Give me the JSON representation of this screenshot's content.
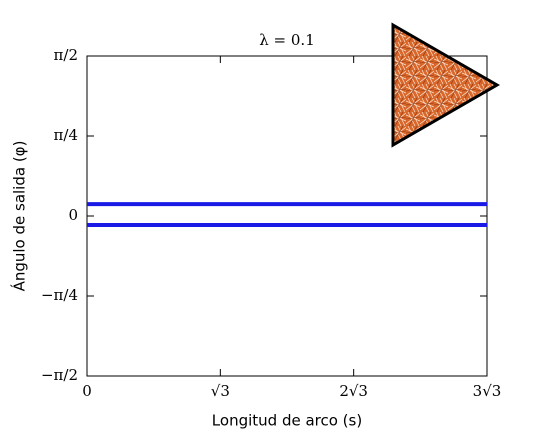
{
  "chart_data": {
    "type": "line",
    "title": "λ = 0.1",
    "xlabel": "Longitud de arco (s)",
    "ylabel": "Ángulo de salida (φ)",
    "x": [
      0,
      5.196
    ],
    "series": [
      {
        "color": "#1a1ae6",
        "values": [
          0.117,
          0.117
        ]
      },
      {
        "color": "#1a1ae6",
        "values": [
          -0.088,
          -0.088
        ]
      }
    ],
    "xlim": [
      0,
      5.196
    ],
    "ylim": [
      -1.5708,
      1.5708
    ],
    "xticks": [
      0,
      {
        "value": 1.732,
        "label": "√3"
      },
      {
        "value": 3.464,
        "label": "2√3"
      },
      {
        "value": 5.196,
        "label": "3√3"
      }
    ],
    "yticks": [
      {
        "value": -1.5708,
        "label": "−π/2"
      },
      {
        "value": -0.7854,
        "label": "−π/4"
      },
      0,
      {
        "value": 0.7854,
        "label": "π/4"
      },
      {
        "value": 1.5708,
        "label": "π/2"
      }
    ]
  }
}
